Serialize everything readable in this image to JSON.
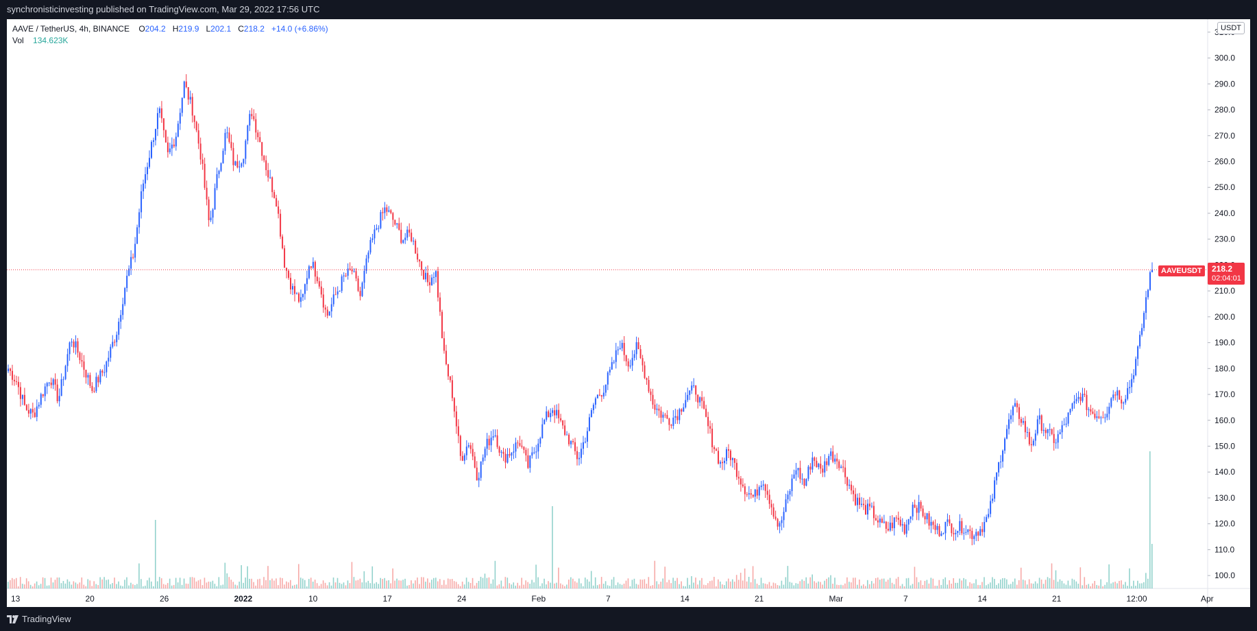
{
  "header": {
    "publisher_text": "synchronisticinvesting published on TradingView.com, Mar 29, 2022 17:56 UTC"
  },
  "legend": {
    "symbol": "AAVE / TetherUS, 4h, BINANCE",
    "open_label": "O",
    "open": "204.2",
    "high_label": "H",
    "high": "219.9",
    "low_label": "L",
    "low": "202.1",
    "close_label": "C",
    "close": "218.2",
    "change": "+14.0 (+6.86%)",
    "vol_label": "Vol",
    "vol": "134.623K"
  },
  "currency": "USDT",
  "price_label": {
    "symbol": "AAVEUSDT",
    "price": "218.2",
    "countdown": "02:04:01"
  },
  "footer": {
    "brand": "TradingView"
  },
  "colors": {
    "up": "#2962ff",
    "down": "#f23645",
    "vol_up": "#26a69a",
    "vol_down": "#ef5350",
    "last_line": "#f23645",
    "axis_text": "#131722"
  },
  "chart_data": {
    "type": "candlestick",
    "interval": "4h",
    "y_axis": {
      "position": "right",
      "ticks": [
        100.0,
        110.0,
        120.0,
        130.0,
        140.0,
        150.0,
        160.0,
        170.0,
        180.0,
        190.0,
        200.0,
        210.0,
        220.0,
        230.0,
        240.0,
        250.0,
        260.0,
        270.0,
        280.0,
        290.0,
        300.0,
        310.0
      ],
      "tick_labels": [
        "100.0",
        "110.0",
        "120.0",
        "130.0",
        "140.0",
        "150.0",
        "160.0",
        "170.0",
        "180.0",
        "190.0",
        "200.0",
        "210.0",
        "220.0",
        "230.0",
        "240.0",
        "250.0",
        "260.0",
        "270.0",
        "280.0",
        "290.0",
        "300.0",
        "310.0"
      ],
      "range": [
        95,
        315
      ]
    },
    "x_axis": {
      "tick_labels": [
        "13",
        "20",
        "26",
        "2022",
        "10",
        "17",
        "24",
        "Feb",
        "7",
        "14",
        "21",
        "Mar",
        "7",
        "14",
        "21",
        "12:00",
        "Apr"
      ]
    },
    "last_price": 218.2,
    "close_path": [
      [
        0,
        180
      ],
      [
        2,
        175
      ],
      [
        4,
        165
      ],
      [
        6,
        162
      ],
      [
        8,
        170
      ],
      [
        10,
        177
      ],
      [
        12,
        168
      ],
      [
        15,
        192
      ],
      [
        17,
        185
      ],
      [
        20,
        172
      ],
      [
        23,
        180
      ],
      [
        26,
        195
      ],
      [
        28,
        213
      ],
      [
        30,
        225
      ],
      [
        32,
        250
      ],
      [
        34,
        265
      ],
      [
        36,
        280
      ],
      [
        38,
        262
      ],
      [
        40,
        270
      ],
      [
        42,
        290
      ],
      [
        44,
        280
      ],
      [
        46,
        262
      ],
      [
        48,
        235
      ],
      [
        50,
        255
      ],
      [
        52,
        272
      ],
      [
        54,
        258
      ],
      [
        56,
        262
      ],
      [
        58,
        280
      ],
      [
        60,
        268
      ],
      [
        62,
        255
      ],
      [
        64,
        245
      ],
      [
        66,
        220
      ],
      [
        68,
        210
      ],
      [
        70,
        205
      ],
      [
        72,
        222
      ],
      [
        74,
        215
      ],
      [
        76,
        200
      ],
      [
        78,
        208
      ],
      [
        80,
        215
      ],
      [
        82,
        218
      ],
      [
        84,
        208
      ],
      [
        86,
        225
      ],
      [
        88,
        235
      ],
      [
        90,
        242
      ],
      [
        92,
        237
      ],
      [
        94,
        230
      ],
      [
        96,
        232
      ],
      [
        98,
        222
      ],
      [
        100,
        213
      ],
      [
        102,
        218
      ],
      [
        104,
        185
      ],
      [
        106,
        170
      ],
      [
        108,
        145
      ],
      [
        110,
        152
      ],
      [
        112,
        138
      ],
      [
        114,
        150
      ],
      [
        116,
        156
      ],
      [
        118,
        145
      ],
      [
        120,
        148
      ],
      [
        122,
        152
      ],
      [
        124,
        142
      ],
      [
        126,
        150
      ],
      [
        128,
        160
      ],
      [
        130,
        165
      ],
      [
        132,
        158
      ],
      [
        134,
        152
      ],
      [
        136,
        145
      ],
      [
        138,
        155
      ],
      [
        140,
        168
      ],
      [
        142,
        172
      ],
      [
        144,
        180
      ],
      [
        146,
        190
      ],
      [
        148,
        182
      ],
      [
        150,
        188
      ],
      [
        152,
        178
      ],
      [
        154,
        166
      ],
      [
        156,
        162
      ],
      [
        158,
        160
      ],
      [
        160,
        163
      ],
      [
        162,
        170
      ],
      [
        164,
        172
      ],
      [
        166,
        163
      ],
      [
        168,
        152
      ],
      [
        170,
        143
      ],
      [
        172,
        148
      ],
      [
        174,
        140
      ],
      [
        176,
        133
      ],
      [
        178,
        130
      ],
      [
        180,
        138
      ],
      [
        182,
        128
      ],
      [
        184,
        118
      ],
      [
        186,
        130
      ],
      [
        188,
        142
      ],
      [
        190,
        135
      ],
      [
        192,
        146
      ],
      [
        194,
        140
      ],
      [
        196,
        147
      ],
      [
        198,
        145
      ],
      [
        200,
        138
      ],
      [
        202,
        130
      ],
      [
        204,
        126
      ],
      [
        206,
        125
      ],
      [
        208,
        120
      ],
      [
        210,
        118
      ],
      [
        212,
        122
      ],
      [
        214,
        118
      ],
      [
        216,
        128
      ],
      [
        218,
        125
      ],
      [
        220,
        120
      ],
      [
        222,
        117
      ],
      [
        224,
        120
      ],
      [
        226,
        118
      ],
      [
        228,
        119
      ],
      [
        230,
        116
      ],
      [
        232,
        118
      ],
      [
        234,
        123
      ],
      [
        236,
        140
      ],
      [
        238,
        155
      ],
      [
        240,
        165
      ],
      [
        242,
        160
      ],
      [
        244,
        150
      ],
      [
        246,
        160
      ],
      [
        248,
        155
      ],
      [
        250,
        152
      ],
      [
        252,
        158
      ],
      [
        254,
        165
      ],
      [
        256,
        170
      ],
      [
        258,
        164
      ],
      [
        260,
        162
      ],
      [
        262,
        163
      ],
      [
        264,
        172
      ],
      [
        266,
        168
      ],
      [
        268,
        175
      ],
      [
        270,
        190
      ],
      [
        272,
        212
      ],
      [
        273,
        218.2
      ]
    ],
    "volume_spikes": [
      [
        35,
        12
      ],
      [
        52,
        2.5
      ],
      [
        130,
        8
      ],
      [
        300,
        4.4
      ]
    ]
  }
}
